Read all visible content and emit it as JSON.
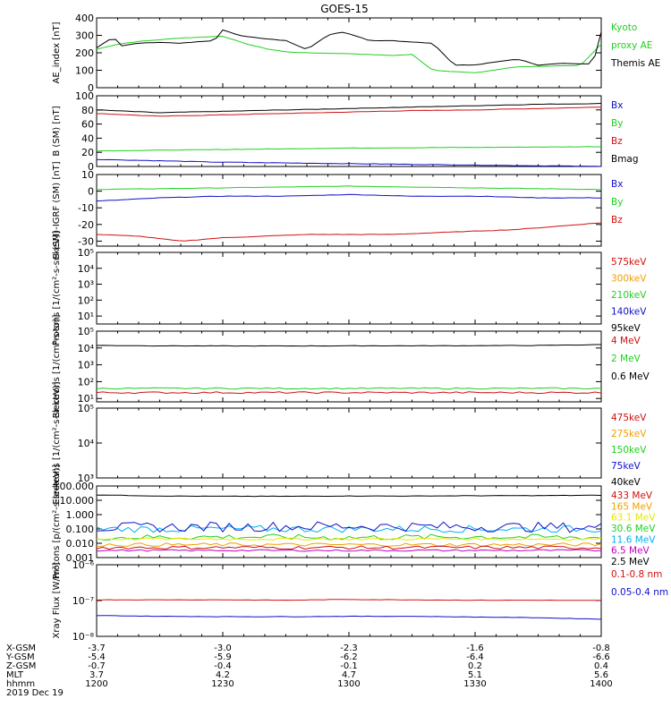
{
  "title": "GOES-15",
  "colors": {
    "black": "#000000",
    "red": "#d01010",
    "green": "#20d020",
    "blue": "#1010c8",
    "yellow": "#e8e800",
    "orange": "#f0a000",
    "cyan": "#00b0f0",
    "magenta": "#c000c0"
  },
  "chart_data": [
    {
      "type": "line",
      "ylabel": "AE_index [nT]",
      "ylim": [
        0,
        400
      ],
      "yscale": "linear",
      "yticks": [
        "0",
        "100",
        "200",
        "300",
        "400"
      ],
      "legend": [
        {
          "text": "Kyoto",
          "color": "green"
        },
        {
          "text": "proxy AE",
          "color": "green"
        },
        {
          "text": "Themis AE",
          "color": "black"
        }
      ],
      "series": [
        {
          "name": "Kyoto proxy AE",
          "color": "green",
          "x": [
            1200,
            1205,
            1210,
            1220,
            1230,
            1235,
            1240,
            1245,
            1250,
            1300,
            1310,
            1315,
            1320,
            1330,
            1340,
            1350,
            1355,
            1400
          ],
          "values": [
            220,
            250,
            265,
            285,
            295,
            255,
            225,
            205,
            200,
            195,
            185,
            190,
            100,
            85,
            120,
            125,
            125,
            250
          ]
        },
        {
          "name": "Themis AE",
          "color": "black",
          "x": [
            1200,
            1202,
            1204,
            1206,
            1210,
            1215,
            1220,
            1228,
            1230,
            1234,
            1240,
            1245,
            1250,
            1255,
            1258,
            1300,
            1305,
            1310,
            1320,
            1325,
            1330,
            1340,
            1345,
            1350,
            1358,
            1400
          ],
          "values": [
            230,
            260,
            290,
            240,
            255,
            260,
            255,
            270,
            330,
            300,
            280,
            270,
            220,
            300,
            320,
            310,
            270,
            270,
            255,
            130,
            130,
            165,
            130,
            140,
            135,
            320
          ]
        }
      ]
    },
    {
      "type": "line",
      "ylabel": "B (SM) [nT]",
      "ylim": [
        0,
        100
      ],
      "yscale": "linear",
      "yticks": [
        "0",
        "20",
        "40",
        "60",
        "80",
        "100"
      ],
      "legend": [
        {
          "text": "Bx",
          "color": "blue"
        },
        {
          "text": "By",
          "color": "green"
        },
        {
          "text": "Bz",
          "color": "red"
        },
        {
          "text": "Bmag",
          "color": "black"
        }
      ],
      "series": [
        {
          "name": "Bmag",
          "color": "black",
          "x": [
            1200,
            1215,
            1230,
            1245,
            1300,
            1315,
            1330,
            1345,
            1400
          ],
          "values": [
            80,
            76,
            78,
            80,
            82,
            84,
            86,
            88,
            89
          ]
        },
        {
          "name": "Bz",
          "color": "red",
          "x": [
            1200,
            1215,
            1230,
            1245,
            1300,
            1315,
            1330,
            1345,
            1400
          ],
          "values": [
            75,
            71,
            73,
            75,
            77,
            79,
            80,
            82,
            84
          ]
        },
        {
          "name": "By",
          "color": "green",
          "x": [
            1200,
            1230,
            1300,
            1330,
            1400
          ],
          "values": [
            22,
            24,
            26,
            27,
            28
          ]
        },
        {
          "name": "Bx",
          "color": "blue",
          "x": [
            1200,
            1215,
            1230,
            1245,
            1300,
            1315,
            1330,
            1345,
            1400
          ],
          "values": [
            10,
            8,
            6,
            5,
            4,
            3,
            2,
            1,
            0
          ]
        }
      ]
    },
    {
      "type": "line",
      "ylabel": "B (SM)-IGRF (SM) [nT]",
      "ylim": [
        -33,
        10
      ],
      "yscale": "linear",
      "yticks": [
        "-30",
        "-20",
        "-10",
        "0",
        "10"
      ],
      "legend": [
        {
          "text": "Bx",
          "color": "blue"
        },
        {
          "text": "By",
          "color": "green"
        },
        {
          "text": "Bz",
          "color": "red"
        }
      ],
      "series": [
        {
          "name": "By",
          "color": "green",
          "x": [
            1200,
            1230,
            1300,
            1330,
            1400
          ],
          "values": [
            1,
            2,
            3,
            2,
            1
          ]
        },
        {
          "name": "Bx",
          "color": "blue",
          "x": [
            1200,
            1215,
            1230,
            1245,
            1300,
            1315,
            1330,
            1345,
            1400
          ],
          "values": [
            -6,
            -4,
            -3,
            -3,
            -2,
            -3,
            -3,
            -4,
            -4
          ]
        },
        {
          "name": "Bz",
          "color": "red",
          "x": [
            1200,
            1210,
            1220,
            1230,
            1240,
            1250,
            1300,
            1310,
            1320,
            1330,
            1340,
            1350,
            1400
          ],
          "values": [
            -26,
            -27,
            -30,
            -28,
            -27,
            -26,
            -26,
            -26,
            -25,
            -24,
            -23,
            -21,
            -19
          ]
        }
      ]
    },
    {
      "type": "line",
      "ylabel": "Protons [1/(cm²-s-sr-keV)]",
      "ylim": [
        0.5,
        5
      ],
      "yscale": "log",
      "yticks": [
        "10¹",
        "10²",
        "10³",
        "10⁴",
        "10⁵"
      ],
      "legend": [
        {
          "text": "575keV",
          "color": "red"
        },
        {
          "text": "300keV",
          "color": "orange"
        },
        {
          "text": "210keV",
          "color": "green"
        },
        {
          "text": "140keV",
          "color": "blue"
        },
        {
          "text": "95keV",
          "color": "black"
        }
      ],
      "series": []
    },
    {
      "type": "line",
      "ylabel": "Electrons [1/(cm²-s-sr)]",
      "ylim": [
        0.8,
        5
      ],
      "yscale": "log",
      "yticks": [
        "10¹",
        "10²",
        "10³",
        "10⁴",
        "10⁵"
      ],
      "legend": [
        {
          "text": "4 MeV",
          "color": "red"
        },
        {
          "text": "2 MeV",
          "color": "green"
        },
        {
          "text": "0.6 MeV",
          "color": "black"
        }
      ],
      "series": [
        {
          "name": "0.6 MeV",
          "color": "black",
          "x": [
            1200,
            1215,
            1230,
            1245,
            1300,
            1315,
            1330,
            1345,
            1400
          ],
          "values": [
            4.15,
            4.13,
            4.12,
            4.12,
            4.13,
            4.13,
            4.14,
            4.15,
            4.2
          ]
        },
        {
          "name": "2 MeV",
          "color": "green",
          "x": [
            1200,
            1230,
            1300,
            1330,
            1400
          ],
          "values": [
            1.6,
            1.6,
            1.6,
            1.6,
            1.6
          ],
          "noise": 0.04
        },
        {
          "name": "4 MeV",
          "color": "red",
          "x": [
            1200,
            1230,
            1300,
            1330,
            1400
          ],
          "values": [
            1.35,
            1.35,
            1.35,
            1.35,
            1.35
          ],
          "noise": 0.05
        }
      ]
    },
    {
      "type": "line",
      "ylabel": "Electrons [1/(cm²-s-sr-keV)]",
      "ylim": [
        3,
        5
      ],
      "yscale": "log",
      "yticks": [
        "10³",
        "10⁴",
        "10⁵"
      ],
      "legend": [
        {
          "text": "475keV",
          "color": "red"
        },
        {
          "text": "275keV",
          "color": "orange"
        },
        {
          "text": "150keV",
          "color": "green"
        },
        {
          "text": "75keV",
          "color": "blue"
        },
        {
          "text": "40keV",
          "color": "black"
        }
      ],
      "series": []
    },
    {
      "type": "line",
      "ylabel": "Protons [p/(cm²-s-sr-keV)]",
      "ylim": [
        -3,
        2
      ],
      "yscale": "log",
      "yticks": [
        "0.001",
        "0.010",
        "0.100",
        "1.000",
        "10.000",
        "100.000"
      ],
      "legend": [
        {
          "text": "433 MeV",
          "color": "red"
        },
        {
          "text": "165 MeV",
          "color": "orange"
        },
        {
          "text": "63.1 MeV",
          "color": "yellow"
        },
        {
          "text": "30.6 MeV",
          "color": "green"
        },
        {
          "text": "11.6 MeV",
          "color": "cyan"
        },
        {
          "text": "6.5 MeV",
          "color": "magenta"
        },
        {
          "text": "2.5 MeV",
          "color": "black"
        }
      ],
      "series": [
        {
          "name": "2.5 MeV",
          "color": "black",
          "x": [
            1200,
            1215,
            1230,
            1245,
            1300,
            1315,
            1330,
            1345,
            1400
          ],
          "values": [
            1.38,
            1.3,
            1.28,
            1.28,
            1.3,
            1.3,
            1.32,
            1.33,
            1.35
          ]
        },
        {
          "name": "11.6 MeV",
          "color": "cyan",
          "x": [
            1200,
            1230,
            1300,
            1330,
            1400
          ],
          "values": [
            -1.0,
            -1.0,
            -1.0,
            -1.0,
            -1.0
          ],
          "noise": 0.25
        },
        {
          "name": "6.5 MeV",
          "color": "blue",
          "x": [
            1200,
            1230,
            1300,
            1330,
            1400
          ],
          "values": [
            -0.9,
            -0.85,
            -0.8,
            -0.85,
            -0.9
          ],
          "noise": 0.35
        },
        {
          "name": "30.6 MeV",
          "color": "green",
          "x": [
            1200,
            1230,
            1300,
            1330,
            1400
          ],
          "values": [
            -1.6,
            -1.55,
            -1.6,
            -1.55,
            -1.6
          ],
          "noise": 0.2
        },
        {
          "name": "63.1 MeV",
          "color": "yellow",
          "x": [
            1200,
            1230,
            1300,
            1330,
            1400
          ],
          "values": [
            -1.7,
            -1.7,
            -1.7,
            -1.7,
            -1.7
          ],
          "noise": 0.08
        },
        {
          "name": "165 MeV",
          "color": "orange",
          "x": [
            1200,
            1230,
            1300,
            1330,
            1400
          ],
          "values": [
            -2.1,
            -2.1,
            -2.1,
            -2.1,
            -2.1
          ],
          "noise": 0.12
        },
        {
          "name": "433 MeV",
          "color": "red",
          "x": [
            1200,
            1230,
            1300,
            1330,
            1400
          ],
          "values": [
            -2.3,
            -2.3,
            -2.3,
            -2.3,
            -2.3
          ],
          "noise": 0.12
        },
        {
          "name": "433 MeV b",
          "color": "magenta",
          "x": [
            1200,
            1230,
            1300,
            1330,
            1400
          ],
          "values": [
            -2.5,
            -2.5,
            -2.5,
            -2.5,
            -2.5
          ],
          "noise": 0.06
        }
      ]
    },
    {
      "type": "line",
      "ylabel": "Xray Flux [W/m²]",
      "ylim": [
        -8,
        -6
      ],
      "yscale": "log",
      "yticks": [
        "10⁻⁸",
        "10⁻⁷",
        "10⁻⁶"
      ],
      "legend": [
        {
          "text": "0.1-0.8 nm",
          "color": "red"
        },
        {
          "text": "0.05-0.4 nm",
          "color": "blue"
        }
      ],
      "series": [
        {
          "name": "0.1-0.8 nm",
          "color": "red",
          "x": [
            1200,
            1215,
            1230,
            1245,
            1300,
            1315,
            1330,
            1345,
            1400
          ],
          "values": [
            -6.98,
            -6.98,
            -6.98,
            -6.99,
            -6.97,
            -6.98,
            -6.99,
            -6.99,
            -7.0
          ]
        },
        {
          "name": "0.05-0.4 nm",
          "color": "blue",
          "x": [
            1200,
            1215,
            1230,
            1245,
            1300,
            1315,
            1330,
            1345,
            1400
          ],
          "values": [
            -7.42,
            -7.44,
            -7.45,
            -7.45,
            -7.44,
            -7.44,
            -7.46,
            -7.48,
            -7.52
          ]
        }
      ]
    }
  ],
  "xaxis": {
    "range": [
      1200,
      1400
    ],
    "rows": [
      {
        "label": "X-GSM",
        "values": [
          "-3.7",
          "-3.0",
          "-2.3",
          "-1.6",
          "-0.8"
        ]
      },
      {
        "label": "Y-GSM",
        "values": [
          "-5.4",
          "-5.9",
          "-6.2",
          "-6.4",
          "-6.6"
        ]
      },
      {
        "label": "Z-GSM",
        "values": [
          "-0.7",
          "-0.4",
          "-0.1",
          "0.2",
          "0.4"
        ]
      },
      {
        "label": "MLT",
        "values": [
          "3.7",
          "4.2",
          "4.7",
          "5.1",
          "5.6"
        ]
      },
      {
        "label": "hhmm",
        "values": [
          "1200",
          "1230",
          "1300",
          "1330",
          "1400"
        ]
      }
    ],
    "date": "2019 Dec 19"
  }
}
